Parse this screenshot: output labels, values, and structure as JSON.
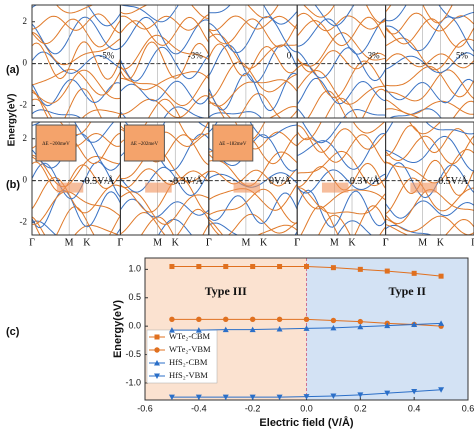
{
  "band_panels": {
    "ylabel": "Energy(eV)",
    "ylim": [
      -2.6,
      2.8
    ],
    "yticks": [
      2,
      0,
      -2
    ],
    "kpoints": [
      "Γ",
      "M",
      "K",
      "Γ"
    ],
    "rows": [
      {
        "label": "(a)",
        "panels": [
          "-5%",
          "-3%",
          "0",
          "3%",
          "5%"
        ]
      },
      {
        "label": "(b)",
        "panels": [
          "-0.5V/Å",
          "-0.3V/Å",
          "0V/Å",
          "0.3V/Å",
          "0.5V/Å"
        ]
      }
    ],
    "insets": [
      "ΔE ~200meV",
      "ΔE ~202meV",
      "ΔE ~182meV"
    ]
  },
  "chart_data": {
    "type": "line",
    "label": "(c)",
    "xlabel": "Electric field (V/Å)",
    "ylabel": "Energy(eV)",
    "x": [
      -0.5,
      -0.4,
      -0.3,
      -0.2,
      -0.1,
      0,
      0.1,
      0.2,
      0.3,
      0.4,
      0.5
    ],
    "series": [
      {
        "name": "WTe₂-CBM",
        "color": "#e0701f",
        "marker": "square",
        "values": [
          1.05,
          1.05,
          1.05,
          1.05,
          1.05,
          1.05,
          1.03,
          1.0,
          0.97,
          0.93,
          0.88
        ]
      },
      {
        "name": "WTe₂-VBM",
        "color": "#e0701f",
        "marker": "circle",
        "values": [
          0.12,
          0.12,
          0.12,
          0.12,
          0.12,
          0.12,
          0.1,
          0.08,
          0.05,
          0.03,
          0.0
        ]
      },
      {
        "name": "HfS₂-CBM",
        "color": "#2b6fc8",
        "marker": "triangle-up",
        "values": [
          -0.07,
          -0.07,
          -0.06,
          -0.06,
          -0.05,
          -0.04,
          -0.03,
          -0.01,
          0.01,
          0.03,
          0.05
        ]
      },
      {
        "name": "HfS₂-VBM",
        "color": "#2b6fc8",
        "marker": "triangle-down",
        "values": [
          -1.25,
          -1.25,
          -1.25,
          -1.25,
          -1.25,
          -1.24,
          -1.23,
          -1.21,
          -1.18,
          -1.15,
          -1.12
        ]
      }
    ],
    "regions": [
      {
        "label": "Type III",
        "from": -0.6,
        "to": 0,
        "color": "#fbe2d0",
        "text_color": "#d9502a"
      },
      {
        "label": "Type II",
        "from": 0,
        "to": 0.6,
        "color": "#d3e2f4",
        "text_color": "#2b6fc8"
      }
    ],
    "xlim": [
      -0.6,
      0.6
    ],
    "ylim": [
      -1.3,
      1.2
    ],
    "xticks": [
      {
        "value": -0.6,
        "label": "-0.6"
      },
      {
        "value": -0.4,
        "label": "-0.4"
      },
      {
        "value": -0.2,
        "label": "-0.2"
      },
      {
        "value": 0,
        "label": "0.0"
      },
      {
        "value": 0.2,
        "label": "0.2"
      },
      {
        "value": 0.4,
        "label": "0.4"
      },
      {
        "value": 0.6,
        "label": "0.6"
      }
    ],
    "yticks": [
      {
        "value": -1,
        "label": "-1.0"
      },
      {
        "value": -0.5,
        "label": "-0.5"
      },
      {
        "value": 0,
        "label": "0.0"
      },
      {
        "value": 0.5,
        "label": "0.5"
      },
      {
        "value": 1,
        "label": "1.0"
      }
    ]
  }
}
